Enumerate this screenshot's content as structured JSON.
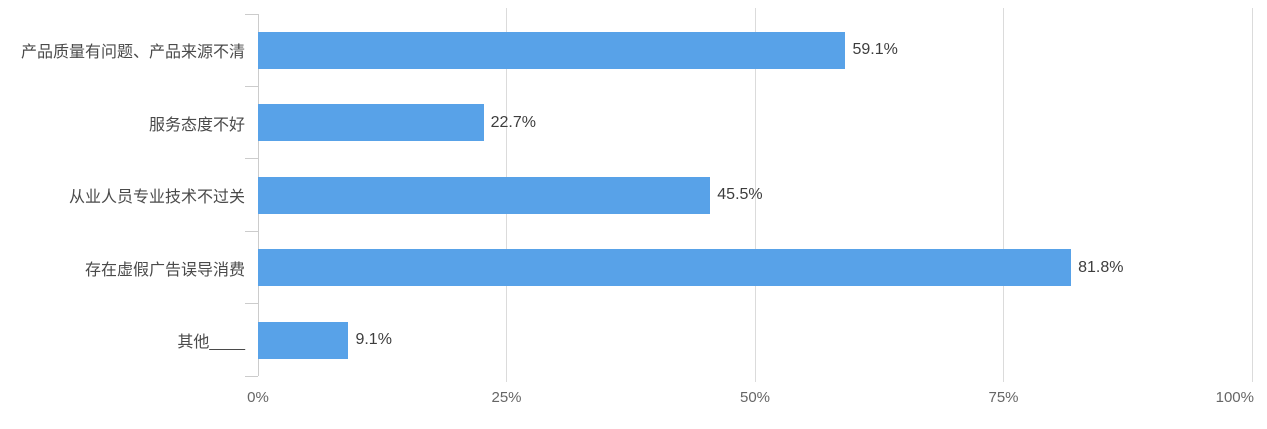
{
  "chart_data": {
    "type": "bar",
    "orientation": "horizontal",
    "title": "",
    "xlabel": "",
    "ylabel": "",
    "categories": [
      "产品质量有问题、产品来源不清",
      "服务态度不好",
      "从业人员专业技术不过关",
      "存在虚假广告误导消费",
      "其他____"
    ],
    "values": [
      59.1,
      22.7,
      45.5,
      81.8,
      9.1
    ],
    "value_labels": [
      "59.1%",
      "22.7%",
      "45.5%",
      "81.8%",
      "9.1%"
    ],
    "x_tick_labels": [
      "0%",
      "25%",
      "50%",
      "75%",
      "100%"
    ],
    "x_tick_values": [
      0,
      25,
      50,
      75,
      100
    ],
    "xlim": [
      0,
      100
    ],
    "grid": true,
    "legend": false,
    "colors": {
      "bar": "#58A2E8",
      "grid_line": "#DBDBDB",
      "axis_line": "#CCCCCC",
      "category_text": "#4A4A4A",
      "value_text": "#3D3D3D",
      "tick_text": "#666666",
      "background": "#FFFFFF"
    }
  }
}
